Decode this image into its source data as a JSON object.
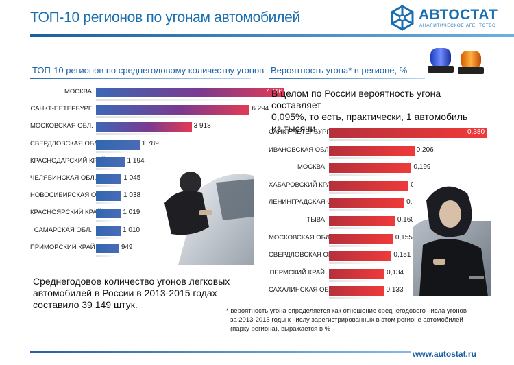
{
  "header": {
    "title": "ТОП-10 регионов по угонам автомобилей",
    "logo_word": "АВТОСТАТ",
    "logo_sub": "АНАЛИТИЧЕСКОЕ АГЕНТСТВО"
  },
  "left_panel": {
    "title": "ТОП-10 регионов по среднегодовому количеству угонов",
    "note_lines": [
      "Среднегодовое количество угонов легковых",
      "автомобилей в России в 2013-2015 годах",
      "составило 39 149 штук."
    ]
  },
  "right_panel": {
    "title": "Вероятность угона* в регионе, %",
    "note_lines": [
      "В целом по России вероятность угона составляет",
      "0,095%, то есть, практически, 1 автомобиль",
      "из тысячи."
    ],
    "footnote_lines": [
      "* вероятность угона определяется как отношение среднегодового числа угонов",
      "за 2013-2015 годы к числу зарегистрированных в этом регионе автомобилей",
      "(парку региона), выражается в %"
    ]
  },
  "footer": {
    "url": "www.autostat.ru"
  },
  "chart_data": [
    {
      "type": "bar",
      "orientation": "horizontal",
      "title": "ТОП-10 регионов по среднегодовому количеству угонов",
      "categories": [
        "МОСКВА",
        "САНКТ-ПЕТЕРБУРГ",
        "МОСКОВСКАЯ ОБЛ.",
        "СВЕРДЛОВСКАЯ ОБЛ.",
        "КРАСНОДАРСКИЙ КРАЙ",
        "ЧЕЛЯБИНСКАЯ ОБЛ.",
        "НОВОСИБИРСКАЯ ОБЛ.",
        "КРАСНОЯРСКИЙ КРАЙ",
        "САМАРСКАЯ ОБЛ.",
        "ПРИМОРСКИЙ КРАЙ"
      ],
      "values": [
        7716,
        6294,
        3918,
        1789,
        1194,
        1045,
        1038,
        1019,
        1010,
        949
      ],
      "value_labels": [
        "7 716",
        "6 294",
        "3 918",
        "1 789",
        "1 194",
        "1 045",
        "1 038",
        "1 019",
        "1 010",
        "949"
      ],
      "xlim": [
        0,
        7716
      ],
      "colors": {
        "high": "#e23a55",
        "low": "#3168ad"
      }
    },
    {
      "type": "bar",
      "orientation": "horizontal",
      "title": "Вероятность угона* в регионе, %",
      "categories": [
        "САНКТ-ПЕТЕРБУРГ",
        "ИВАНОВСКАЯ ОБЛ.",
        "МОСКВА",
        "ХАБАРОВСКИЙ КРАЙ",
        "ЛЕНИНГРАДСКАЯ ОБЛ.",
        "ТЫВА",
        "МОСКОВСКАЯ ОБЛ.",
        "СВЕРДЛОВСКАЯ ОБЛ.",
        "ПЕРМСКИЙ КРАЙ",
        "САХАЛИНСКАЯ ОБЛ."
      ],
      "values": [
        0.38,
        0.206,
        0.199,
        0.192,
        0.182,
        0.16,
        0.155,
        0.151,
        0.134,
        0.133
      ],
      "value_labels": [
        "0,380",
        "0,206",
        "0,199",
        "0,192",
        "0,182",
        "0,160",
        "0,155",
        "0,151",
        "0,134",
        "0,133"
      ],
      "xlim": [
        0,
        0.38
      ],
      "colors": {
        "bar": "#e32f3c"
      }
    }
  ]
}
